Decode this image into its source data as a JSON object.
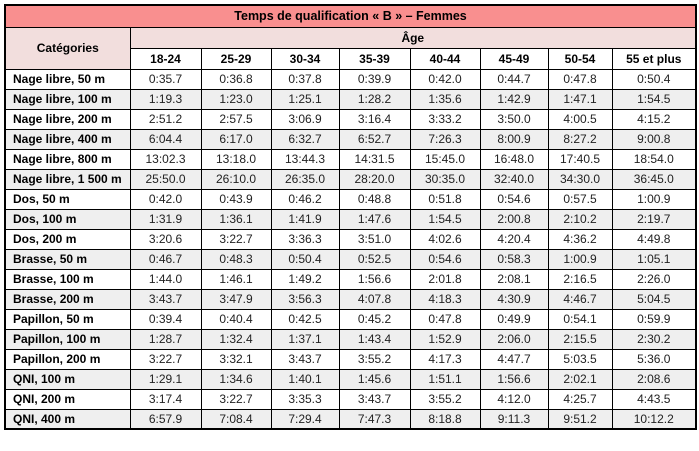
{
  "title": "Temps de qualification « B » – Femmes",
  "header": {
    "categories_label": "Catégories",
    "age_label": "Âge",
    "age_groups": [
      "18-24",
      "25-29",
      "30-34",
      "35-39",
      "40-44",
      "45-49",
      "50-54",
      "55 et plus"
    ]
  },
  "colors": {
    "title_bg": "#f98f8f",
    "header_bg": "#f2dedd",
    "stripe_bg": "#efefef",
    "border": "#000000"
  },
  "rows": [
    {
      "label": "Nage libre, 50 m",
      "times": [
        "0:35.7",
        "0:36.8",
        "0:37.8",
        "0:39.9",
        "0:42.0",
        "0:44.7",
        "0:47.8",
        "0:50.4"
      ]
    },
    {
      "label": "Nage libre, 100 m",
      "times": [
        "1:19.3",
        "1:23.0",
        "1:25.1",
        "1:28.2",
        "1:35.6",
        "1:42.9",
        "1:47.1",
        "1:54.5"
      ]
    },
    {
      "label": "Nage libre, 200 m",
      "times": [
        "2:51.2",
        "2:57.5",
        "3:06.9",
        "3:16.4",
        "3:33.2",
        "3:50.0",
        "4:00.5",
        "4:15.2"
      ]
    },
    {
      "label": "Nage libre, 400 m",
      "times": [
        "6:04.4",
        "6:17.0",
        "6:32.7",
        "6:52.7",
        "7:26.3",
        "8:00.9",
        "8:27.2",
        "9:00.8"
      ]
    },
    {
      "label": "Nage libre, 800 m",
      "times": [
        "13:02.3",
        "13:18.0",
        "13:44.3",
        "14:31.5",
        "15:45.0",
        "16:48.0",
        "17:40.5",
        "18:54.0"
      ]
    },
    {
      "label": "Nage libre, 1 500 m",
      "times": [
        "25:50.0",
        "26:10.0",
        "26:35.0",
        "28:20.0",
        "30:35.0",
        "32:40.0",
        "34:30.0",
        "36:45.0"
      ]
    },
    {
      "label": "Dos, 50 m",
      "times": [
        "0:42.0",
        "0:43.9",
        "0:46.2",
        "0:48.8",
        "0:51.8",
        "0:54.6",
        "0:57.5",
        "1:00.9"
      ]
    },
    {
      "label": "Dos, 100 m",
      "times": [
        "1:31.9",
        "1:36.1",
        "1:41.9",
        "1:47.6",
        "1:54.5",
        "2:00.8",
        "2:10.2",
        "2:19.7"
      ]
    },
    {
      "label": "Dos, 200 m",
      "times": [
        "3:20.6",
        "3:22.7",
        "3:36.3",
        "3:51.0",
        "4:02.6",
        "4:20.4",
        "4:36.2",
        "4:49.8"
      ]
    },
    {
      "label": "Brasse, 50 m",
      "times": [
        "0:46.7",
        "0:48.3",
        "0:50.4",
        "0:52.5",
        "0:54.6",
        "0:58.3",
        "1:00.9",
        "1:05.1"
      ]
    },
    {
      "label": "Brasse, 100 m",
      "times": [
        "1:44.0",
        "1:46.1",
        "1:49.2",
        "1:56.6",
        "2:01.8",
        "2:08.1",
        "2:16.5",
        "2:26.0"
      ]
    },
    {
      "label": "Brasse, 200 m",
      "times": [
        "3:43.7",
        "3:47.9",
        "3:56.3",
        "4:07.8",
        "4:18.3",
        "4:30.9",
        "4:46.7",
        "5:04.5"
      ]
    },
    {
      "label": "Papillon, 50 m",
      "times": [
        "0:39.4",
        "0:40.4",
        "0:42.5",
        "0:45.2",
        "0:47.8",
        "0:49.9",
        "0:54.1",
        "0:59.9"
      ]
    },
    {
      "label": "Papillon, 100 m",
      "times": [
        "1:28.7",
        "1:32.4",
        "1:37.1",
        "1:43.4",
        "1:52.9",
        "2:06.0",
        "2:15.5",
        "2:30.2"
      ]
    },
    {
      "label": "Papillon, 200 m",
      "times": [
        "3:22.7",
        "3:32.1",
        "3:43.7",
        "3:55.2",
        "4:17.3",
        "4:47.7",
        "5:03.5",
        "5:36.0"
      ]
    },
    {
      "label": "QNI, 100 m",
      "times": [
        "1:29.1",
        "1:34.6",
        "1:40.1",
        "1:45.6",
        "1:51.1",
        "1:56.6",
        "2:02.1",
        "2:08.6"
      ]
    },
    {
      "label": "QNI, 200 m",
      "times": [
        "3:17.4",
        "3:22.7",
        "3:35.3",
        "3:43.7",
        "3:55.2",
        "4:12.0",
        "4:25.7",
        "4:43.5"
      ]
    },
    {
      "label": "QNI, 400 m",
      "times": [
        "6:57.9",
        "7:08.4",
        "7:29.4",
        "7:47.3",
        "8:18.8",
        "9:11.3",
        "9:51.2",
        "10:12.2"
      ]
    }
  ]
}
